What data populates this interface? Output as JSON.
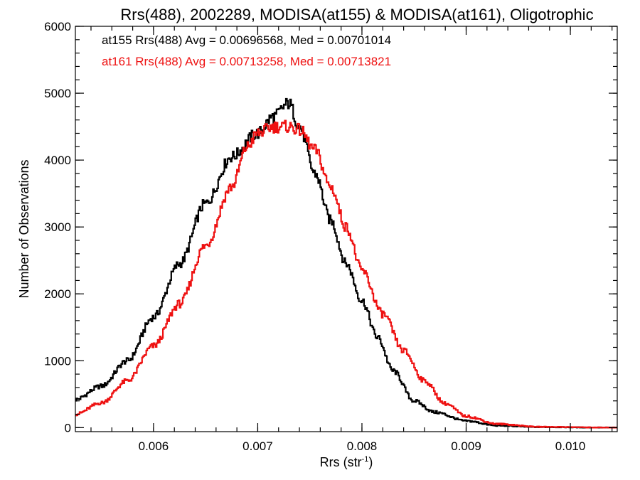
{
  "chart_data": {
    "type": "line",
    "title": "Rrs(488), 2002289, MODISA(at155) & MODISA(at161), Oligotrophic",
    "xlabel": "Rrs (str",
    "xlabel_sup": "-1",
    "xlabel_close": ")",
    "ylabel": "Number of Observations",
    "xlim": [
      0.00525,
      0.01045
    ],
    "ylim": [
      -60,
      6000
    ],
    "xticks": [
      0.006,
      0.007,
      0.008,
      0.009,
      0.01
    ],
    "xtick_labels": [
      "0.006",
      "0.007",
      "0.008",
      "0.009",
      "0.010"
    ],
    "yticks": [
      0,
      1000,
      2000,
      3000,
      4000,
      5000,
      6000
    ],
    "ytick_labels": [
      "0",
      "1000",
      "2000",
      "3000",
      "4000",
      "5000",
      "6000"
    ],
    "x_minor_step": 0.0002,
    "y_minor_step": 200,
    "legend_position": "top-left",
    "series": [
      {
        "label": "at155 Rrs(488) Avg = 0.00696568, Med = 0.00701014",
        "color": "#000000",
        "x": [
          0.00525,
          0.0055,
          0.00575,
          0.006,
          0.00625,
          0.0065,
          0.00675,
          0.007,
          0.00715,
          0.0073,
          0.0074,
          0.00755,
          0.0077,
          0.00785,
          0.008,
          0.00815,
          0.0083,
          0.0085,
          0.0087,
          0.009,
          0.0093,
          0.0097,
          0.01045
        ],
        "y": [
          420,
          620,
          1000,
          1650,
          2450,
          3350,
          4050,
          4400,
          4650,
          4850,
          4500,
          3800,
          3100,
          2450,
          1900,
          1350,
          850,
          400,
          230,
          100,
          30,
          8,
          0
        ]
      },
      {
        "label": "at161 Rrs(488) Avg = 0.00713258, Med = 0.00713821",
        "color": "#ee1111",
        "x": [
          0.00525,
          0.0055,
          0.00575,
          0.006,
          0.00625,
          0.0065,
          0.00675,
          0.0069,
          0.007,
          0.00715,
          0.0073,
          0.0074,
          0.00755,
          0.0077,
          0.00785,
          0.008,
          0.0082,
          0.0084,
          0.0086,
          0.0088,
          0.009,
          0.0093,
          0.0097,
          0.01045
        ],
        "y": [
          200,
          370,
          700,
          1220,
          1850,
          2720,
          3600,
          4200,
          4400,
          4500,
          4500,
          4450,
          4150,
          3600,
          3000,
          2350,
          1700,
          1150,
          700,
          360,
          170,
          55,
          12,
          0
        ]
      }
    ]
  }
}
